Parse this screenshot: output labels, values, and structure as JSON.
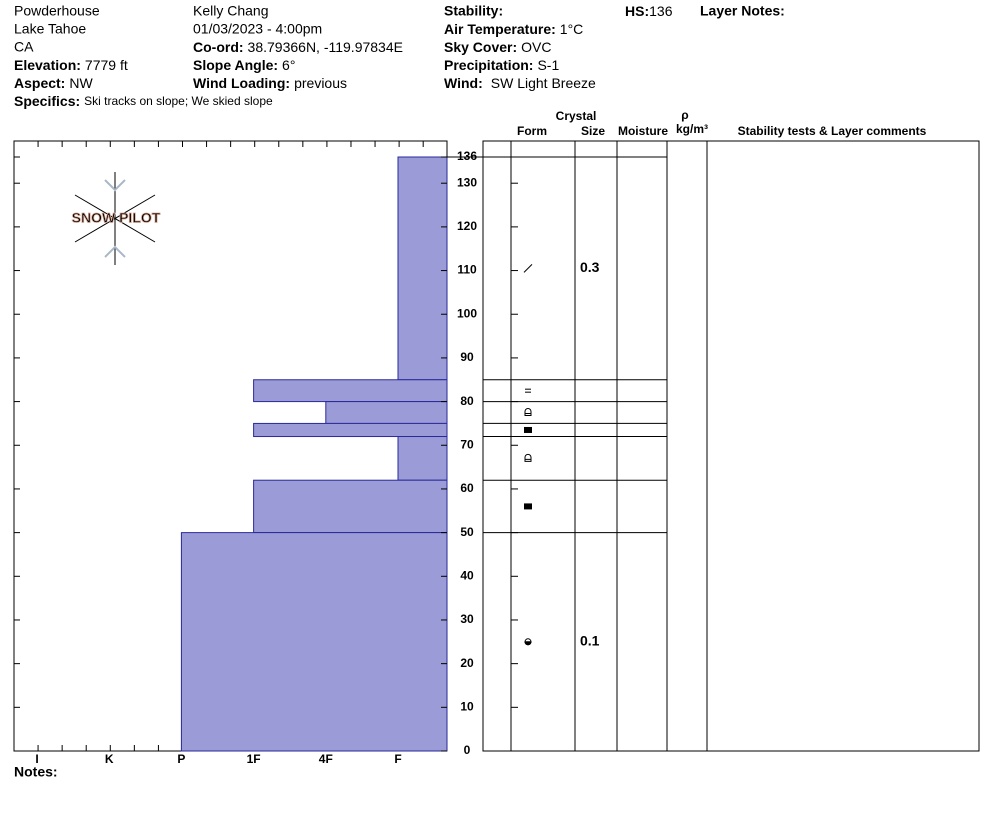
{
  "header": {
    "location": [
      "Powderhouse",
      "Lake Tahoe",
      "CA"
    ],
    "elevation": {
      "label": "Elevation:",
      "value": "7779 ft"
    },
    "aspect": {
      "label": "Aspect:",
      "value": "NW"
    },
    "specifics": {
      "label": "Specifics:",
      "value": "Ski tracks on slope; We skied slope"
    },
    "observer": "Kelly Chang",
    "datetime": "01/03/2023 - 4:00pm",
    "coord": {
      "label": "Co-ord:",
      "value": "38.79366N, -119.97834E"
    },
    "slope_angle": {
      "label": "Slope Angle:",
      "value": "6°"
    },
    "wind_loading": {
      "label": "Wind Loading:",
      "value": "previous"
    },
    "stability": {
      "label": "Stability:"
    },
    "air_temperature": {
      "label": "Air Temperature:",
      "value": "1°C"
    },
    "sky_cover": {
      "label": "Sky Cover:",
      "value": "OVC"
    },
    "precipitation": {
      "label": "Precipitation:",
      "value": "S-1"
    },
    "wind": {
      "label": "Wind:",
      "value": "SW Light Breeze"
    },
    "hs": {
      "label": "HS:",
      "value": "136"
    },
    "layer_notes": "Layer Notes:",
    "logo": "SNOW PILOT",
    "notes": "Notes:"
  },
  "table_headers": {
    "crystal": "Crystal",
    "form": "Form",
    "size": "Size",
    "moisture": "Moisture",
    "rho": "ρ",
    "density_unit": "kg/m³",
    "comments": "Stability tests & Layer comments"
  },
  "chart_data": {
    "type": "hardness",
    "categories": [
      "I",
      "K",
      "P",
      "1F",
      "4F",
      "F"
    ],
    "ylim": [
      0,
      136
    ],
    "yticks": [
      0,
      10,
      20,
      30,
      40,
      50,
      60,
      70,
      80,
      90,
      100,
      110,
      120,
      130,
      136
    ],
    "color": "#9b9bd7",
    "layers": [
      {
        "top": 136,
        "bottom": 85,
        "hardness": "F",
        "size": 0.3
      },
      {
        "top": 85,
        "bottom": 80,
        "hardness": "1F"
      },
      {
        "top": 80,
        "bottom": 75,
        "hardness": "4F"
      },
      {
        "top": 75,
        "bottom": 72,
        "hardness": "1F"
      },
      {
        "top": 72,
        "bottom": 62,
        "hardness": "F"
      },
      {
        "top": 62,
        "bottom": 50,
        "hardness": "1F"
      },
      {
        "top": 50,
        "bottom": 0,
        "hardness": "P",
        "size": 0.1
      }
    ]
  }
}
